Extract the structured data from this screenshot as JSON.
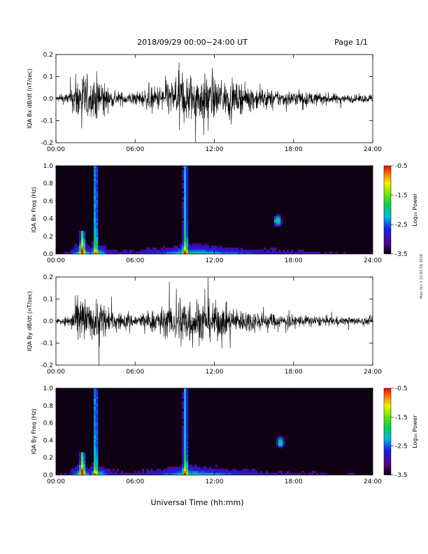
{
  "header": {
    "title": "2018/09/29  00:00−24:00 UT",
    "page": "Page 1/1"
  },
  "xlabel": "Universal Time (hh:mm)",
  "side_note": "Mon Oct 1 22:01:56 2018",
  "x_ticks": [
    "00:00",
    "06:00",
    "12:00",
    "18:00",
    "24:00"
  ],
  "colors": {
    "trace": "#000000",
    "spectrogram_background": "#100014"
  },
  "chart_data": [
    {
      "type": "line",
      "ylabel": "IQA Bx dB/dt (nT/sec)",
      "xlim": [
        0,
        24
      ],
      "ylim": [
        -0.2,
        0.2
      ],
      "y_ticks": [
        "-0.2",
        "-0.1",
        "0.0",
        "0.1",
        "0.2"
      ],
      "activity_envelope": {
        "hours": [
          0,
          1,
          1.8,
          2.2,
          2.6,
          3.3,
          4,
          5,
          6,
          7,
          8,
          9,
          10,
          11,
          12,
          13,
          14,
          15,
          16,
          17,
          18,
          19,
          20,
          21,
          22,
          23,
          24
        ],
        "amplitude": [
          0.02,
          0.05,
          0.2,
          0.2,
          0.12,
          0.2,
          0.07,
          0.05,
          0.05,
          0.08,
          0.1,
          0.15,
          0.2,
          0.18,
          0.15,
          0.12,
          0.1,
          0.09,
          0.07,
          0.06,
          0.06,
          0.05,
          0.045,
          0.04,
          0.03,
          0.03,
          0.03
        ]
      }
    },
    {
      "type": "heatmap",
      "ylabel": "IQA Bx Freq (Hz)",
      "xlim": [
        0,
        24
      ],
      "ylim": [
        0.0,
        1.0
      ],
      "y_ticks": [
        "0.0",
        "0.2",
        "0.4",
        "0.6",
        "0.8",
        "1.0"
      ],
      "colorbar": {
        "label": "Log₁₀ Power",
        "range": [
          -3.5,
          -0.5
        ],
        "ticks": [
          "-0.5",
          "-1.5",
          "-2.5",
          "-3.5"
        ]
      },
      "features": [
        {
          "hour": 2.0,
          "max_freq": 0.25,
          "strength": 0.8
        },
        {
          "hour": 3.0,
          "max_freq": 1.0,
          "strength": 0.7
        },
        {
          "hour": 9.8,
          "max_freq": 1.0,
          "strength": 0.7
        },
        {
          "hour": 16.8,
          "freq": 0.38,
          "strength": 0.6
        }
      ]
    },
    {
      "type": "line",
      "ylabel": "IQA By dB/dt (nT/sec)",
      "xlim": [
        0,
        24
      ],
      "ylim": [
        -0.2,
        0.2
      ],
      "y_ticks": [
        "-0.2",
        "-0.1",
        "0.0",
        "0.1",
        "0.2"
      ],
      "activity_envelope": {
        "hours": [
          0,
          1,
          1.8,
          2.2,
          2.6,
          3.3,
          4,
          5,
          6,
          7,
          8,
          9,
          10,
          11,
          12,
          13,
          14,
          15,
          16,
          17,
          18,
          19,
          20,
          21,
          22,
          23,
          24
        ],
        "amplitude": [
          0.02,
          0.04,
          0.2,
          0.2,
          0.1,
          0.2,
          0.08,
          0.06,
          0.05,
          0.08,
          0.1,
          0.14,
          0.2,
          0.16,
          0.14,
          0.11,
          0.09,
          0.08,
          0.06,
          0.05,
          0.05,
          0.045,
          0.04,
          0.035,
          0.03,
          0.03,
          0.025
        ]
      }
    },
    {
      "type": "heatmap",
      "ylabel": "IQA By Freq (Hz)",
      "xlim": [
        0,
        24
      ],
      "ylim": [
        0.0,
        1.0
      ],
      "y_ticks": [
        "0.0",
        "0.2",
        "0.4",
        "0.6",
        "0.8",
        "1.0"
      ],
      "colorbar": {
        "label": "Log₁₀ Power",
        "range": [
          -3.5,
          -0.5
        ],
        "ticks": [
          "-0.5",
          "-1.5",
          "-2.5",
          "-3.5"
        ]
      },
      "features": [
        {
          "hour": 2.0,
          "max_freq": 0.25,
          "strength": 0.8
        },
        {
          "hour": 3.0,
          "max_freq": 1.0,
          "strength": 0.7
        },
        {
          "hour": 9.8,
          "max_freq": 1.0,
          "strength": 0.7
        },
        {
          "hour": 17.0,
          "freq": 0.38,
          "strength": 0.6
        }
      ]
    }
  ]
}
